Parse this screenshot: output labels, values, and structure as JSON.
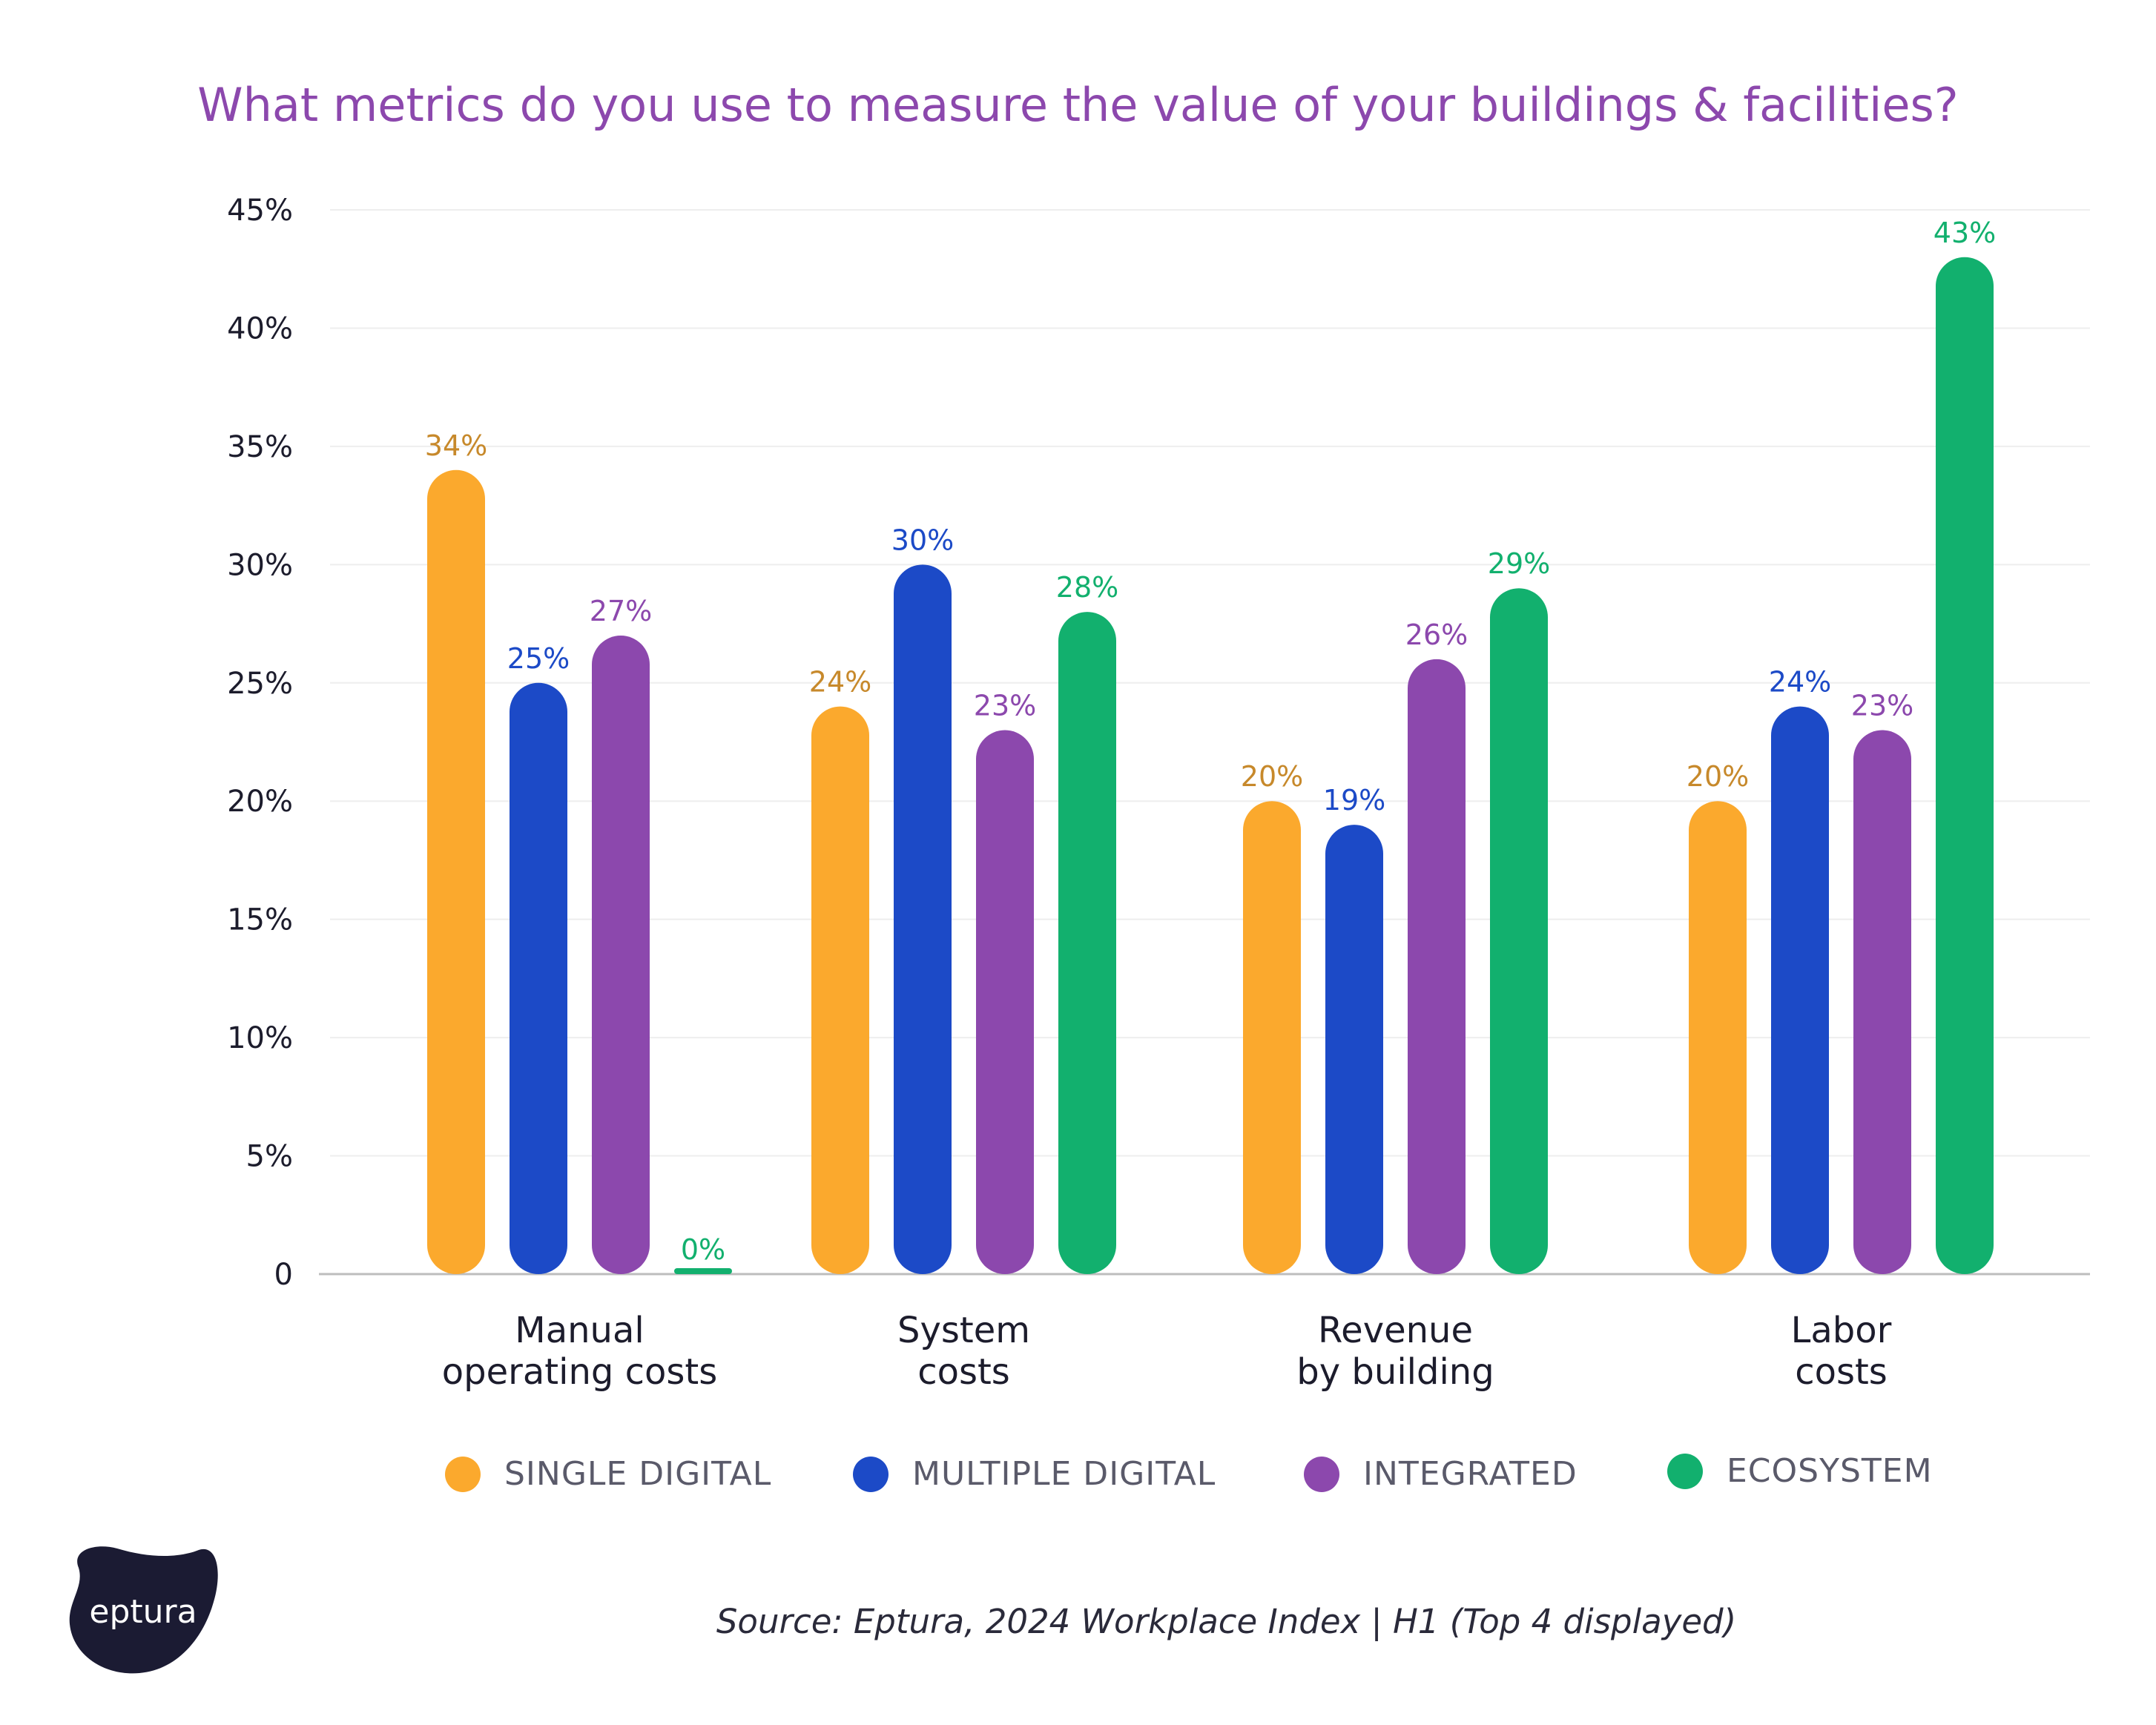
{
  "chart_data": {
    "type": "bar",
    "title": "What metrics do you use to measure the value of your buildings & facilities?",
    "categories": [
      [
        "Manual",
        "operating costs"
      ],
      [
        "System",
        "costs"
      ],
      [
        "Revenue",
        "by building"
      ],
      [
        "Labor",
        "costs"
      ]
    ],
    "series": [
      {
        "name": "SINGLE DIGITAL",
        "color": "#fba92d",
        "label_color": "#c7892b",
        "values": [
          34,
          24,
          20,
          20
        ]
      },
      {
        "name": "MULTIPLE DIGITAL",
        "color": "#1c4ac7",
        "label_color": "#1c4ac7",
        "values": [
          25,
          30,
          19,
          24
        ]
      },
      {
        "name": "INTEGRATED",
        "color": "#8c48ad",
        "label_color": "#8c48ad",
        "values": [
          27,
          23,
          26,
          23
        ]
      },
      {
        "name": "ECOSYSTEM",
        "color": "#12b06e",
        "label_color": "#12b06e",
        "values": [
          0,
          28,
          29,
          43
        ]
      }
    ],
    "data_labels": [
      [
        "34%",
        "24%",
        "20%",
        "20%"
      ],
      [
        "25%",
        "30%",
        "19%",
        "24%"
      ],
      [
        "27%",
        "23%",
        "26%",
        "23%"
      ],
      [
        "0%",
        "28%",
        "29%",
        "43%"
      ]
    ],
    "y_ticks": [
      {
        "value": 0,
        "label": "0"
      },
      {
        "value": 5,
        "label": "5%"
      },
      {
        "value": 10,
        "label": "10%"
      },
      {
        "value": 15,
        "label": "15%"
      },
      {
        "value": 20,
        "label": "20%"
      },
      {
        "value": 25,
        "label": "25%"
      },
      {
        "value": 30,
        "label": "30%"
      },
      {
        "value": 35,
        "label": "35%"
      },
      {
        "value": 40,
        "label": "40%"
      },
      {
        "value": 45,
        "label": "45%"
      }
    ],
    "ylim": [
      0,
      45
    ],
    "grid": true,
    "legend_position": "bottom",
    "xlabel": "",
    "ylabel": ""
  },
  "source": "Source: Eptura, 2024 Workplace Index | H1 (Top 4 displayed)",
  "logo": {
    "text": "eptura",
    "color": "#1b1b33"
  }
}
